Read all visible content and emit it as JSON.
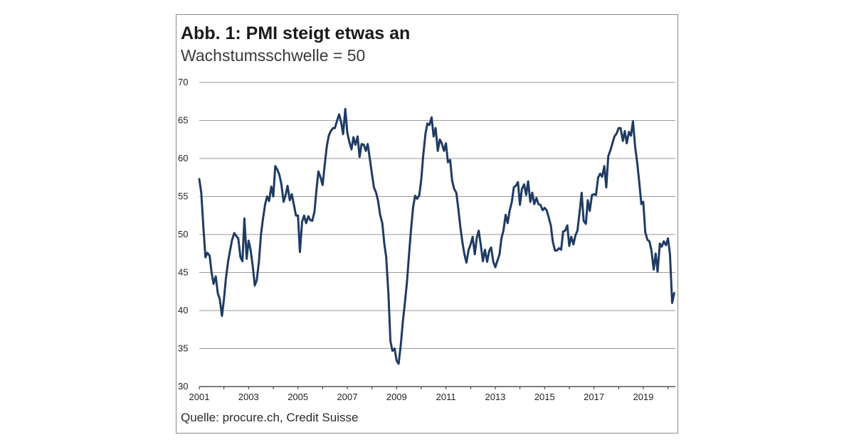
{
  "header": {
    "title": "Abb. 1: PMI steigt etwas an",
    "subtitle": "Wachstumsschwelle = 50"
  },
  "footer": {
    "source": "Quelle: procure.ch, Credit Suisse"
  },
  "colors": {
    "line": "#1f3b63",
    "grid": "#9a9a9a",
    "axis": "#333333",
    "border": "#8a8a8a"
  },
  "chart_data": {
    "type": "line",
    "title": "Abb. 1: PMI steigt etwas an",
    "subtitle": "Wachstumsschwelle = 50",
    "xlabel": "",
    "ylabel": "",
    "xlim": [
      2001.0,
      2020.3
    ],
    "ylim": [
      30,
      70
    ],
    "grid": "horizontal",
    "legend": "none",
    "x_ticks": [
      "2001",
      "2003",
      "2005",
      "2007",
      "2009",
      "2011",
      "2013",
      "2015",
      "2017",
      "2019"
    ],
    "y_ticks": [
      "30",
      "35",
      "40",
      "45",
      "50",
      "55",
      "60",
      "65",
      "70"
    ],
    "series": [
      {
        "x": [
          2001.0,
          2001.08,
          2001.17,
          2001.25,
          2001.33,
          2001.42,
          2001.5,
          2001.58,
          2001.67,
          2001.75,
          2001.83,
          2001.92,
          2002.0,
          2002.08,
          2002.17,
          2002.25,
          2002.33,
          2002.42,
          2002.5,
          2002.58,
          2002.67,
          2002.75,
          2002.83,
          2002.92,
          2003.0,
          2003.08,
          2003.17,
          2003.25,
          2003.33,
          2003.42,
          2003.5,
          2003.58,
          2003.67,
          2003.75,
          2003.83,
          2003.92,
          2004.0,
          2004.08,
          2004.17,
          2004.25,
          2004.33,
          2004.42,
          2004.5,
          2004.58,
          2004.67,
          2004.75,
          2004.83,
          2004.92,
          2005.0,
          2005.08,
          2005.17,
          2005.25,
          2005.33,
          2005.42,
          2005.5,
          2005.58,
          2005.67,
          2005.75,
          2005.83,
          2005.92,
          2006.0,
          2006.08,
          2006.17,
          2006.25,
          2006.33,
          2006.42,
          2006.5,
          2006.58,
          2006.67,
          2006.75,
          2006.83,
          2006.92,
          2007.0,
          2007.08,
          2007.17,
          2007.25,
          2007.33,
          2007.42,
          2007.5,
          2007.58,
          2007.67,
          2007.75,
          2007.83,
          2007.92,
          2008.0,
          2008.08,
          2008.17,
          2008.25,
          2008.33,
          2008.42,
          2008.5,
          2008.58,
          2008.67,
          2008.75,
          2008.83,
          2008.92,
          2009.0,
          2009.08,
          2009.17,
          2009.25,
          2009.33,
          2009.42,
          2009.5,
          2009.58,
          2009.67,
          2009.75,
          2009.83,
          2009.92,
          2010.0,
          2010.08,
          2010.17,
          2010.25,
          2010.33,
          2010.42,
          2010.5,
          2010.58,
          2010.67,
          2010.75,
          2010.83,
          2010.92,
          2011.0,
          2011.08,
          2011.17,
          2011.25,
          2011.33,
          2011.42,
          2011.5,
          2011.58,
          2011.67,
          2011.75,
          2011.83,
          2011.92,
          2012.0,
          2012.08,
          2012.17,
          2012.25,
          2012.33,
          2012.42,
          2012.5,
          2012.58,
          2012.67,
          2012.75,
          2012.83,
          2012.92,
          2013.0,
          2013.08,
          2013.17,
          2013.25,
          2013.33,
          2013.42,
          2013.5,
          2013.58,
          2013.67,
          2013.75,
          2013.83,
          2013.92,
          2014.0,
          2014.08,
          2014.17,
          2014.25,
          2014.33,
          2014.42,
          2014.5,
          2014.58,
          2014.67,
          2014.75,
          2014.83,
          2014.92,
          2015.0,
          2015.08,
          2015.17,
          2015.25,
          2015.33,
          2015.42,
          2015.5,
          2015.58,
          2015.67,
          2015.75,
          2015.83,
          2015.92,
          2016.0,
          2016.08,
          2016.17,
          2016.25,
          2016.33,
          2016.42,
          2016.5,
          2016.58,
          2016.67,
          2016.75,
          2016.83,
          2016.92,
          2017.0,
          2017.08,
          2017.17,
          2017.25,
          2017.33,
          2017.42,
          2017.5,
          2017.58,
          2017.67,
          2017.75,
          2017.83,
          2017.92,
          2018.0,
          2018.08,
          2018.17,
          2018.25,
          2018.33,
          2018.42,
          2018.5,
          2018.58,
          2018.67,
          2018.75,
          2018.83,
          2018.92,
          2019.0,
          2019.08,
          2019.17,
          2019.25,
          2019.33,
          2019.42,
          2019.5,
          2019.58,
          2019.67,
          2019.75,
          2019.83,
          2019.92,
          2020.0,
          2020.08,
          2020.17,
          2020.25
        ],
        "values": [
          57.3,
          55.5,
          50.8,
          47.0,
          47.6,
          47.2,
          45.0,
          43.5,
          44.5,
          42.3,
          41.5,
          39.3,
          41.5,
          44.2,
          46.5,
          47.9,
          49.3,
          50.2,
          49.8,
          49.5,
          47.0,
          46.5,
          52.1,
          46.8,
          49.2,
          48.0,
          45.8,
          43.3,
          44.0,
          46.5,
          50.0,
          52.0,
          54.0,
          55.0,
          54.4,
          56.3,
          55.0,
          59.0,
          58.5,
          57.8,
          56.6,
          54.3,
          55.2,
          56.4,
          54.5,
          55.3,
          54.0,
          52.5,
          52.5,
          47.7,
          51.7,
          52.5,
          51.5,
          52.4,
          51.9,
          51.8,
          53.0,
          55.9,
          58.3,
          57.5,
          56.5,
          59.0,
          61.6,
          63.0,
          63.6,
          64.0,
          64.0,
          64.9,
          65.8,
          64.8,
          63.2,
          66.5,
          63.4,
          62.2,
          61.2,
          62.8,
          61.8,
          62.9,
          60.2,
          61.9,
          61.8,
          61.0,
          61.9,
          59.8,
          58.0,
          56.2,
          55.5,
          54.4,
          52.6,
          51.5,
          48.8,
          47.0,
          42.0,
          36.0,
          34.7,
          35.0,
          33.4,
          33.0,
          35.5,
          38.5,
          40.8,
          43.8,
          47.2,
          50.5,
          53.6,
          55.1,
          54.7,
          55.2,
          57.3,
          60.4,
          63.3,
          64.6,
          64.4,
          65.4,
          62.9,
          64.0,
          61.0,
          62.5,
          62.0,
          61.0,
          62.0,
          59.5,
          59.8,
          57.1,
          56.0,
          55.5,
          53.4,
          51.1,
          48.9,
          47.4,
          46.3,
          48.0,
          48.7,
          49.7,
          47.4,
          49.6,
          50.5,
          48.4,
          46.5,
          48.0,
          46.4,
          47.8,
          48.3,
          46.4,
          45.7,
          46.5,
          47.4,
          49.5,
          50.5,
          52.6,
          51.5,
          53.1,
          54.3,
          56.2,
          56.4,
          56.9,
          53.9,
          56.0,
          56.6,
          55.2,
          57.0,
          54.3,
          55.5,
          54.0,
          54.8,
          54.0,
          53.9,
          53.2,
          53.5,
          53.2,
          52.2,
          51.2,
          49.1,
          47.9,
          47.9,
          48.2,
          48.0,
          50.4,
          50.5,
          51.2,
          48.5,
          49.7,
          48.7,
          49.9,
          50.5,
          53.0,
          55.5,
          51.8,
          51.4,
          54.5,
          53.1,
          55.2,
          55.3,
          55.2,
          57.5,
          58.0,
          57.6,
          59.0,
          56.2,
          60.3,
          61.1,
          62.0,
          62.9,
          63.3,
          64.0,
          64.0,
          62.3,
          63.6,
          62.0,
          63.5,
          63.0,
          64.9,
          61.5,
          59.5,
          57.1,
          54.0,
          54.3,
          50.3,
          49.3,
          49.1,
          47.9,
          45.4,
          47.5,
          45.1,
          48.8,
          48.4,
          49.1,
          48.6,
          49.5,
          47.4,
          41.0,
          42.3
        ]
      }
    ]
  }
}
